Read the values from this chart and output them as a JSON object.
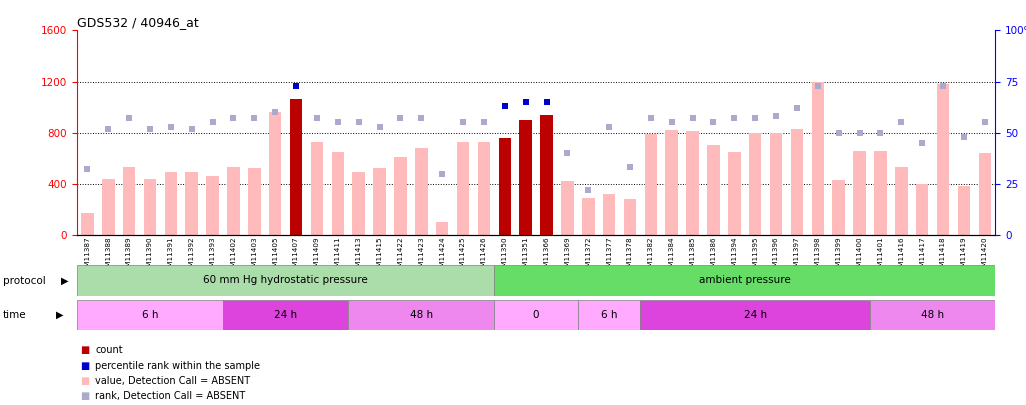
{
  "title": "GDS532 / 40946_at",
  "samples": [
    "GSM11387",
    "GSM11388",
    "GSM11389",
    "GSM11390",
    "GSM11391",
    "GSM11392",
    "GSM11393",
    "GSM11402",
    "GSM11403",
    "GSM11405",
    "GSM11407",
    "GSM11409",
    "GSM11411",
    "GSM11413",
    "GSM11415",
    "GSM11422",
    "GSM11423",
    "GSM11424",
    "GSM11425",
    "GSM11426",
    "GSM11350",
    "GSM11351",
    "GSM11366",
    "GSM11369",
    "GSM11372",
    "GSM11377",
    "GSM11378",
    "GSM11382",
    "GSM11384",
    "GSM11385",
    "GSM11386",
    "GSM11394",
    "GSM11395",
    "GSM11396",
    "GSM11397",
    "GSM11398",
    "GSM11399",
    "GSM11400",
    "GSM11401",
    "GSM11416",
    "GSM11417",
    "GSM11418",
    "GSM11419",
    "GSM11420"
  ],
  "values": [
    170,
    440,
    530,
    440,
    490,
    490,
    460,
    530,
    520,
    960,
    1060,
    730,
    650,
    490,
    520,
    610,
    680,
    100,
    730,
    730,
    760,
    900,
    940,
    420,
    290,
    320,
    280,
    790,
    820,
    810,
    700,
    650,
    800,
    800,
    830,
    1200,
    430,
    660,
    660,
    530,
    400,
    1180,
    380,
    640
  ],
  "ranks": [
    32,
    52,
    57,
    52,
    53,
    52,
    55,
    57,
    57,
    60,
    73,
    57,
    55,
    55,
    53,
    57,
    57,
    30,
    55,
    55,
    63,
    65,
    65,
    40,
    22,
    53,
    33,
    57,
    55,
    57,
    55,
    57,
    57,
    58,
    62,
    73,
    50,
    50,
    50,
    55,
    45,
    73,
    48,
    55
  ],
  "is_present_value": [
    false,
    false,
    false,
    false,
    false,
    false,
    false,
    false,
    false,
    false,
    true,
    false,
    false,
    false,
    false,
    false,
    false,
    false,
    false,
    false,
    true,
    true,
    true,
    false,
    false,
    false,
    false,
    false,
    false,
    false,
    false,
    false,
    false,
    false,
    false,
    false,
    false,
    false,
    false,
    false,
    false,
    false,
    false,
    false
  ],
  "is_present_rank": [
    false,
    false,
    false,
    false,
    false,
    false,
    false,
    false,
    false,
    false,
    true,
    false,
    false,
    false,
    false,
    false,
    false,
    false,
    false,
    false,
    true,
    true,
    true,
    false,
    false,
    false,
    false,
    false,
    false,
    false,
    false,
    false,
    false,
    false,
    false,
    false,
    false,
    false,
    false,
    false,
    false,
    false,
    false,
    false
  ],
  "ylim_left": [
    0,
    1600
  ],
  "ylim_right": [
    0,
    100
  ],
  "yticks_left": [
    0,
    400,
    800,
    1200,
    1600
  ],
  "yticks_right": [
    0,
    25,
    50,
    75,
    100
  ],
  "color_present_bar": "#bb0000",
  "color_absent_bar": "#ffbbbb",
  "color_present_dot": "#0000cc",
  "color_absent_dot": "#aaaacc",
  "protocol_groups": [
    {
      "label": "60 mm Hg hydrostatic pressure",
      "start": 0,
      "end": 20,
      "color": "#aaddaa"
    },
    {
      "label": "ambient pressure",
      "start": 20,
      "end": 44,
      "color": "#66dd66"
    }
  ],
  "time_groups": [
    {
      "label": "6 h",
      "start": 0,
      "end": 7,
      "color": "#ffaaff"
    },
    {
      "label": "24 h",
      "start": 7,
      "end": 13,
      "color": "#dd44dd"
    },
    {
      "label": "48 h",
      "start": 13,
      "end": 20,
      "color": "#ee88ee"
    },
    {
      "label": "0",
      "start": 20,
      "end": 24,
      "color": "#ffaaff"
    },
    {
      "label": "6 h",
      "start": 24,
      "end": 27,
      "color": "#ffaaff"
    },
    {
      "label": "24 h",
      "start": 27,
      "end": 38,
      "color": "#dd44dd"
    },
    {
      "label": "48 h",
      "start": 38,
      "end": 44,
      "color": "#ee88ee"
    }
  ],
  "legend_items": [
    {
      "color": "#bb0000",
      "label": "count"
    },
    {
      "color": "#0000cc",
      "label": "percentile rank within the sample"
    },
    {
      "color": "#ffbbbb",
      "label": "value, Detection Call = ABSENT"
    },
    {
      "color": "#aaaacc",
      "label": "rank, Detection Call = ABSENT"
    }
  ]
}
